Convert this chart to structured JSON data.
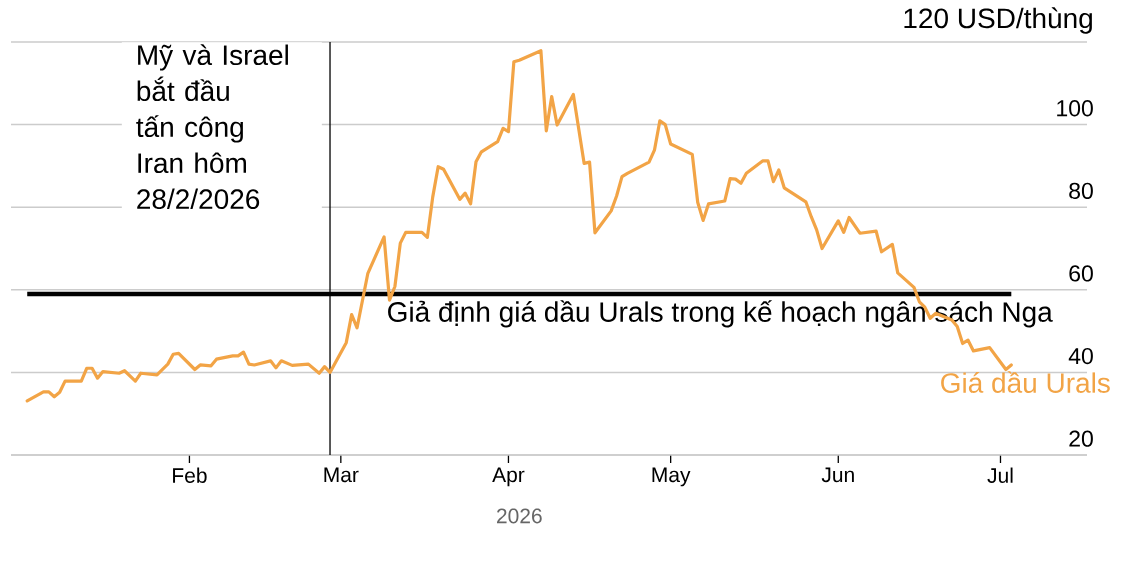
{
  "chart_data": {
    "type": "line",
    "xlabel": "2026",
    "x": [
      "2026-01-02",
      "2026-01-05",
      "2026-01-06",
      "2026-01-07",
      "2026-01-08",
      "2026-01-09",
      "2026-01-12",
      "2026-01-13",
      "2026-01-14",
      "2026-01-15",
      "2026-01-16",
      "2026-01-19",
      "2026-01-20",
      "2026-01-22",
      "2026-01-23",
      "2026-01-26",
      "2026-01-28",
      "2026-01-29",
      "2026-01-30",
      "2026-02-02",
      "2026-02-03",
      "2026-02-05",
      "2026-02-06",
      "2026-02-09",
      "2026-02-10",
      "2026-02-11",
      "2026-02-12",
      "2026-02-13",
      "2026-02-16",
      "2026-02-17",
      "2026-02-18",
      "2026-02-20",
      "2026-02-23",
      "2026-02-25",
      "2026-02-26",
      "2026-02-27",
      "2026-03-02",
      "2026-03-03",
      "2026-03-04",
      "2026-03-06",
      "2026-03-09",
      "2026-03-10",
      "2026-03-11",
      "2026-03-12",
      "2026-03-13",
      "2026-03-16",
      "2026-03-17",
      "2026-03-18",
      "2026-03-19",
      "2026-03-20",
      "2026-03-23",
      "2026-03-24",
      "2026-03-25",
      "2026-03-26",
      "2026-03-27",
      "2026-03-30",
      "2026-03-31",
      "2026-04-01",
      "2026-04-02",
      "2026-04-03",
      "2026-04-07",
      "2026-04-08",
      "2026-04-09",
      "2026-04-10",
      "2026-04-13",
      "2026-04-15",
      "2026-04-16",
      "2026-04-17",
      "2026-04-20",
      "2026-04-21",
      "2026-04-22",
      "2026-04-23",
      "2026-04-27",
      "2026-04-28",
      "2026-04-29",
      "2026-04-30",
      "2026-05-01",
      "2026-05-05",
      "2026-05-06",
      "2026-05-07",
      "2026-05-08",
      "2026-05-11",
      "2026-05-12",
      "2026-05-13",
      "2026-05-14",
      "2026-05-15",
      "2026-05-18",
      "2026-05-19",
      "2026-05-20",
      "2026-05-21",
      "2026-05-22",
      "2026-05-26",
      "2026-05-27",
      "2026-05-28",
      "2026-05-29",
      "2026-06-01",
      "2026-06-02",
      "2026-06-03",
      "2026-06-05",
      "2026-06-08",
      "2026-06-09",
      "2026-06-11",
      "2026-06-12",
      "2026-06-15",
      "2026-06-16",
      "2026-06-17",
      "2026-06-18",
      "2026-06-19",
      "2026-06-22",
      "2026-06-23",
      "2026-06-24",
      "2026-06-25",
      "2026-06-26",
      "2026-06-29",
      "2026-07-02",
      "2026-07-03"
    ],
    "series": [
      {
        "name": "Giá dầu Urals",
        "color": "#f2a446",
        "values": [
          33.1,
          35.3,
          35.3,
          34.1,
          35.2,
          37.9,
          37.9,
          41.0,
          41.0,
          38.6,
          40.2,
          39.8,
          40.4,
          37.9,
          39.8,
          39.4,
          42.0,
          44.4,
          44.6,
          40.7,
          41.8,
          41.6,
          43.2,
          44.0,
          44.0,
          44.9,
          42.0,
          41.8,
          42.8,
          41.1,
          42.8,
          41.7,
          42.0,
          39.8,
          41.4,
          40.0,
          47.2,
          54.0,
          50.8,
          64.0,
          72.8,
          57.5,
          60.8,
          71.3,
          73.9,
          73.9,
          72.7,
          82.5,
          89.8,
          89.2,
          81.9,
          83.4,
          80.8,
          91.0,
          93.4,
          95.9,
          99.1,
          98.3,
          115.2,
          115.6,
          117.9,
          98.5,
          106.8,
          99.9,
          107.3,
          90.6,
          90.9,
          73.8,
          79.1,
          82.7,
          87.4,
          88.2,
          90.9,
          93.8,
          100.9,
          100.0,
          95.3,
          92.8,
          81.2,
          76.8,
          80.8,
          81.5,
          86.9,
          86.8,
          85.8,
          88.2,
          91.2,
          91.2,
          86.2,
          89.0,
          84.7,
          81.3,
          77.7,
          74.5,
          70.0,
          76.7,
          73.9,
          77.5,
          73.7,
          74.2,
          69.2,
          71.0,
          64.1,
          60.6,
          57.1,
          55.8,
          53.1,
          54.3,
          52.7,
          51.1,
          47.0,
          47.8,
          45.2,
          46.0,
          40.7,
          41.8
        ]
      }
    ],
    "xlim": [
      "2025-12-30",
      "2026-07-17"
    ],
    "ylim": [
      20,
      120
    ],
    "xticks": [
      {
        "value": "2026-02-01",
        "label": "Feb"
      },
      {
        "value": "2026-03-01",
        "label": "Mar"
      },
      {
        "value": "2026-04-01",
        "label": "Apr"
      },
      {
        "value": "2026-05-01",
        "label": "May"
      },
      {
        "value": "2026-06-01",
        "label": "Jun"
      },
      {
        "value": "2026-07-01",
        "label": "Jul"
      }
    ],
    "yticks": [
      20,
      40,
      60,
      80,
      100,
      {
        "value": 120,
        "label": "120 USD/thùng"
      }
    ],
    "grid": "y",
    "ref_lines": [
      {
        "axis": "y",
        "value": 59,
        "label": "Giả định giá dầu Urals trong kế hoạch ngân sách Nga",
        "color": "#000000"
      },
      {
        "axis": "x",
        "value": "2026-02-27",
        "label": "Mỹ và Israel\nbắt đầu\ntấn công\nIran hôm\n28/2/2026",
        "color": "#000000"
      }
    ]
  }
}
